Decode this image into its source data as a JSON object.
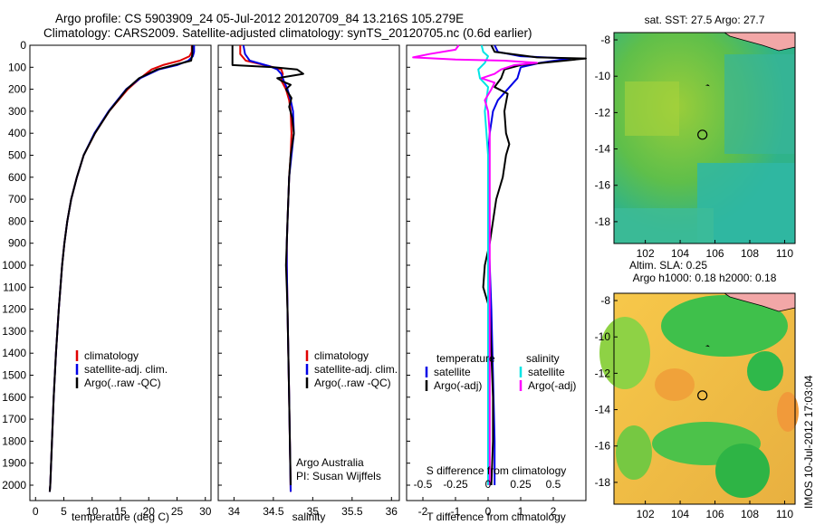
{
  "header": {
    "line1": "Argo profile: CS 5903909_24 05-Jul-2012 20120709_84 13.216S 105.279E",
    "line2": "Climatology: CARS2009. Satellite-adjusted climatology: synTS_20120705.nc (0.6d earlier)"
  },
  "side_stamp": "IMOS 10-Jul-2012 17:03:04",
  "colors": {
    "climatology": "#e00000",
    "satellite": "#0000e6",
    "argo": "#000000",
    "sal_satellite": "#00e5e5",
    "sal_argo": "#ff00ff"
  },
  "depth_ticks": [
    0,
    100,
    200,
    300,
    400,
    500,
    600,
    700,
    800,
    900,
    1000,
    1100,
    1200,
    1300,
    1400,
    1500,
    1600,
    1700,
    1800,
    1900,
    2000
  ],
  "chart_data": [
    {
      "type": "line",
      "id": "temperature",
      "xlabel": "temperature (deg C)",
      "xlim": [
        -1,
        31
      ],
      "ylim": [
        2070,
        0
      ],
      "xticks": [
        0,
        5,
        10,
        15,
        20,
        25,
        30
      ],
      "legend": {
        "placement": "lower-middle",
        "items": [
          "climatology",
          "satellite-adj. clim.",
          "Argo(..raw -QC)"
        ]
      },
      "series": [
        {
          "name": "climatology",
          "key": "climatology",
          "points": [
            [
              27.6,
              0
            ],
            [
              27.6,
              30
            ],
            [
              27.2,
              50
            ],
            [
              25.5,
              70
            ],
            [
              22.5,
              90
            ],
            [
              20.5,
              110
            ],
            [
              18.5,
              150
            ],
            [
              16.3,
              200
            ],
            [
              13,
              300
            ],
            [
              10.5,
              400
            ],
            [
              8.5,
              500
            ],
            [
              7.3,
              600
            ],
            [
              6.3,
              700
            ],
            [
              5.6,
              800
            ],
            [
              5.1,
              900
            ],
            [
              4.7,
              1000
            ],
            [
              4.1,
              1200
            ],
            [
              3.6,
              1400
            ],
            [
              3.2,
              1600
            ],
            [
              2.9,
              1800
            ],
            [
              2.6,
              2000
            ],
            [
              2.5,
              2030
            ]
          ]
        },
        {
          "name": "satellite-adj. clim.",
          "key": "satellite",
          "points": [
            [
              28,
              0
            ],
            [
              28,
              30
            ],
            [
              27.8,
              50
            ],
            [
              27,
              70
            ],
            [
              25,
              90
            ],
            [
              21.8,
              110
            ],
            [
              18.5,
              150
            ],
            [
              16,
              200
            ],
            [
              12.9,
              300
            ],
            [
              10.4,
              400
            ],
            [
              8.5,
              500
            ],
            [
              7.3,
              600
            ],
            [
              6.3,
              700
            ],
            [
              5.6,
              800
            ],
            [
              5.1,
              900
            ],
            [
              4.7,
              1000
            ],
            [
              4.1,
              1200
            ],
            [
              3.6,
              1400
            ],
            [
              3.2,
              1600
            ],
            [
              2.9,
              1800
            ],
            [
              2.6,
              2000
            ],
            [
              2.5,
              2030
            ]
          ]
        },
        {
          "name": "Argo(..raw -QC)",
          "key": "argo",
          "points": [
            [
              27.7,
              0
            ],
            [
              27.7,
              40
            ],
            [
              27.5,
              70
            ],
            [
              24.5,
              90
            ],
            [
              21.5,
              110
            ],
            [
              18.3,
              150
            ],
            [
              16.1,
              200
            ],
            [
              13,
              300
            ],
            [
              10.5,
              400
            ],
            [
              8.5,
              500
            ],
            [
              7.3,
              600
            ],
            [
              6.3,
              700
            ],
            [
              5.6,
              800
            ],
            [
              5.1,
              900
            ],
            [
              4.7,
              1000
            ],
            [
              4.1,
              1200
            ],
            [
              3.6,
              1400
            ],
            [
              3.2,
              1600
            ],
            [
              2.9,
              1800
            ],
            [
              2.6,
              2000
            ],
            [
              2.5,
              2030
            ]
          ]
        }
      ]
    },
    {
      "type": "line",
      "id": "salinity",
      "xlabel": "salinity",
      "xlim": [
        33.8,
        36.1
      ],
      "ylim": [
        2070,
        0
      ],
      "xticks": [
        34,
        34.5,
        35,
        35.5,
        36
      ],
      "legend": {
        "placement": "lower-middle",
        "items": [
          "climatology",
          "satellite-adj. clim.",
          "Argo(..raw -QC)"
        ]
      },
      "annotation": [
        "Argo Australia",
        "PI: Susan Wijffels"
      ],
      "series": [
        {
          "name": "climatology",
          "key": "climatology",
          "points": [
            [
              34.08,
              0
            ],
            [
              34.08,
              40
            ],
            [
              34.15,
              70
            ],
            [
              34.45,
              95
            ],
            [
              34.6,
              110
            ],
            [
              34.62,
              130
            ],
            [
              34.6,
              160
            ],
            [
              34.66,
              200
            ],
            [
              34.7,
              250
            ],
            [
              34.72,
              300
            ],
            [
              34.73,
              400
            ],
            [
              34.72,
              500
            ],
            [
              34.7,
              600
            ],
            [
              34.69,
              700
            ],
            [
              34.68,
              800
            ],
            [
              34.67,
              900
            ],
            [
              34.67,
              1000
            ],
            [
              34.68,
              1200
            ],
            [
              34.69,
              1400
            ],
            [
              34.7,
              1600
            ],
            [
              34.71,
              1800
            ],
            [
              34.72,
              2030
            ]
          ]
        },
        {
          "name": "satellite-adj. clim.",
          "key": "satellite",
          "points": [
            [
              34.12,
              0
            ],
            [
              34.14,
              40
            ],
            [
              34.2,
              70
            ],
            [
              34.45,
              95
            ],
            [
              34.55,
              110
            ],
            [
              34.6,
              130
            ],
            [
              34.63,
              160
            ],
            [
              34.68,
              200
            ],
            [
              34.72,
              250
            ],
            [
              34.75,
              300
            ],
            [
              34.76,
              400
            ],
            [
              34.73,
              500
            ],
            [
              34.7,
              600
            ],
            [
              34.69,
              700
            ],
            [
              34.68,
              800
            ],
            [
              34.67,
              900
            ],
            [
              34.67,
              1000
            ],
            [
              34.68,
              1200
            ],
            [
              34.69,
              1400
            ],
            [
              34.7,
              1600
            ],
            [
              34.71,
              1800
            ],
            [
              34.72,
              2030
            ]
          ]
        },
        {
          "name": "Argo(..raw -QC)",
          "key": "argo",
          "points": [
            [
              33.98,
              0
            ],
            [
              33.98,
              90
            ],
            [
              34.5,
              100
            ],
            [
              34.8,
              110
            ],
            [
              34.88,
              130
            ],
            [
              34.55,
              150
            ],
            [
              34.62,
              165
            ],
            [
              34.72,
              180
            ],
            [
              34.66,
              200
            ],
            [
              34.73,
              240
            ],
            [
              34.7,
              280
            ],
            [
              34.74,
              330
            ],
            [
              34.76,
              400
            ],
            [
              34.72,
              500
            ],
            [
              34.7,
              600
            ],
            [
              34.69,
              700
            ],
            [
              34.68,
              800
            ],
            [
              34.67,
              900
            ],
            [
              34.66,
              1000
            ],
            [
              34.67,
              1100
            ],
            [
              34.68,
              1200
            ],
            [
              34.69,
              1400
            ],
            [
              34.7,
              1600
            ],
            [
              34.71,
              1800
            ],
            [
              34.72,
              2000
            ]
          ]
        }
      ]
    },
    {
      "type": "line",
      "id": "difference",
      "xlabel": "T difference from climatology",
      "xlabel_top": "S difference from climatology",
      "xlim": [
        -2.5,
        3
      ],
      "ylim": [
        2070,
        0
      ],
      "xticks": [
        -2,
        -1,
        0,
        1,
        2
      ],
      "xticks_top": [
        [
          "-0.5",
          -2
        ],
        [
          "-0.25",
          -1
        ],
        [
          "0",
          0
        ],
        [
          "0.25",
          1
        ],
        [
          "0.5",
          2
        ]
      ],
      "legend": {
        "placement": "lower-middle",
        "headers": [
          "temperature",
          "salinity"
        ],
        "items": [
          [
            "satellite",
            "Argo(-adj)"
          ],
          [
            "satellite",
            "Argo(-adj)"
          ]
        ]
      },
      "series": [
        {
          "name": "satellite",
          "group": "temperature",
          "key": "satellite",
          "points": [
            [
              0.2,
              0
            ],
            [
              0.3,
              30
            ],
            [
              1,
              50
            ],
            [
              2.5,
              60
            ],
            [
              1.6,
              80
            ],
            [
              1,
              100
            ],
            [
              0.9,
              150
            ],
            [
              0.6,
              200
            ],
            [
              0.3,
              250
            ],
            [
              0.15,
              300
            ],
            [
              0.05,
              400
            ],
            [
              0,
              500
            ],
            [
              0,
              600
            ],
            [
              0,
              700
            ],
            [
              0,
              800
            ],
            [
              0.05,
              1000
            ],
            [
              0.1,
              1200
            ],
            [
              0.15,
              1500
            ],
            [
              0.2,
              1800
            ],
            [
              0.2,
              2000
            ]
          ]
        },
        {
          "name": "Argo(-adj)",
          "group": "temperature",
          "key": "argo",
          "points": [
            [
              0.1,
              0
            ],
            [
              0.2,
              30
            ],
            [
              1.5,
              55
            ],
            [
              3,
              60
            ],
            [
              2,
              75
            ],
            [
              1,
              90
            ],
            [
              0.5,
              110
            ],
            [
              0.4,
              150
            ],
            [
              0.2,
              190
            ],
            [
              0.6,
              220
            ],
            [
              0.5,
              300
            ],
            [
              0.55,
              400
            ],
            [
              0.65,
              450
            ],
            [
              0.55,
              500
            ],
            [
              0.45,
              600
            ],
            [
              0.25,
              700
            ],
            [
              0.15,
              800
            ],
            [
              0.05,
              900
            ],
            [
              -0.1,
              1000
            ],
            [
              -0.15,
              1100
            ],
            [
              0.05,
              1200
            ],
            [
              0.1,
              1400
            ],
            [
              0.15,
              1600
            ],
            [
              0.15,
              1800
            ],
            [
              0.1,
              2000
            ]
          ]
        },
        {
          "name": "satellite",
          "group": "salinity",
          "key": "sal_satellite",
          "points": [
            [
              -0.2,
              0
            ],
            [
              -0.15,
              30
            ],
            [
              0,
              50
            ],
            [
              -0.1,
              80
            ],
            [
              -0.3,
              110
            ],
            [
              -0.25,
              150
            ],
            [
              0,
              190
            ],
            [
              -0.05,
              250
            ],
            [
              -0.1,
              300
            ],
            [
              -0.05,
              400
            ],
            [
              0,
              500
            ],
            [
              0,
              800
            ],
            [
              0,
              1200
            ],
            [
              0,
              1600
            ],
            [
              0,
              2000
            ]
          ]
        },
        {
          "name": "Argo(-adj)",
          "group": "salinity",
          "key": "sal_argo",
          "points": [
            [
              -0.9,
              0
            ],
            [
              -1,
              20
            ],
            [
              -1.8,
              40
            ],
            [
              -2.3,
              55
            ],
            [
              -1,
              65
            ],
            [
              0.5,
              70
            ],
            [
              1.5,
              80
            ],
            [
              0.8,
              90
            ],
            [
              0.4,
              110
            ],
            [
              0.2,
              130
            ],
            [
              -0.2,
              150
            ],
            [
              0.2,
              170
            ],
            [
              0.1,
              200
            ],
            [
              -0.1,
              250
            ],
            [
              0,
              300
            ],
            [
              0.05,
              400
            ],
            [
              0.05,
              500
            ],
            [
              0.05,
              800
            ],
            [
              0.05,
              1200
            ],
            [
              0.05,
              1600
            ],
            [
              0.05,
              2000
            ]
          ]
        }
      ]
    },
    {
      "type": "heatmap",
      "id": "sst_map",
      "title": "sat. SST: 27.5  Argo: 27.7",
      "xlim": [
        100.2,
        110.6
      ],
      "ylim": [
        -19.2,
        -7.6
      ],
      "xticks": [
        102,
        104,
        106,
        108,
        110
      ],
      "yticks": [
        -8,
        -10,
        -12,
        -14,
        -16,
        -18
      ],
      "marker": {
        "lon": 105.279,
        "lat": -13.216
      },
      "start_mark": {
        "lon": 105.6,
        "lat": -10.5
      }
    },
    {
      "type": "heatmap",
      "id": "sla_map",
      "title_lines": [
        "Altim. SLA: 0.25",
        "Argo h1000: 0.18 h2000: 0.18"
      ],
      "xlim": [
        100.2,
        110.6
      ],
      "ylim": [
        -19.2,
        -7.6
      ],
      "xticks": [
        102,
        104,
        106,
        108,
        110
      ],
      "yticks": [
        -8,
        -10,
        -12,
        -14,
        -16,
        -18
      ],
      "marker": {
        "lon": 105.279,
        "lat": -13.216
      },
      "start_mark": {
        "lon": 105.6,
        "lat": -10.5
      }
    }
  ]
}
